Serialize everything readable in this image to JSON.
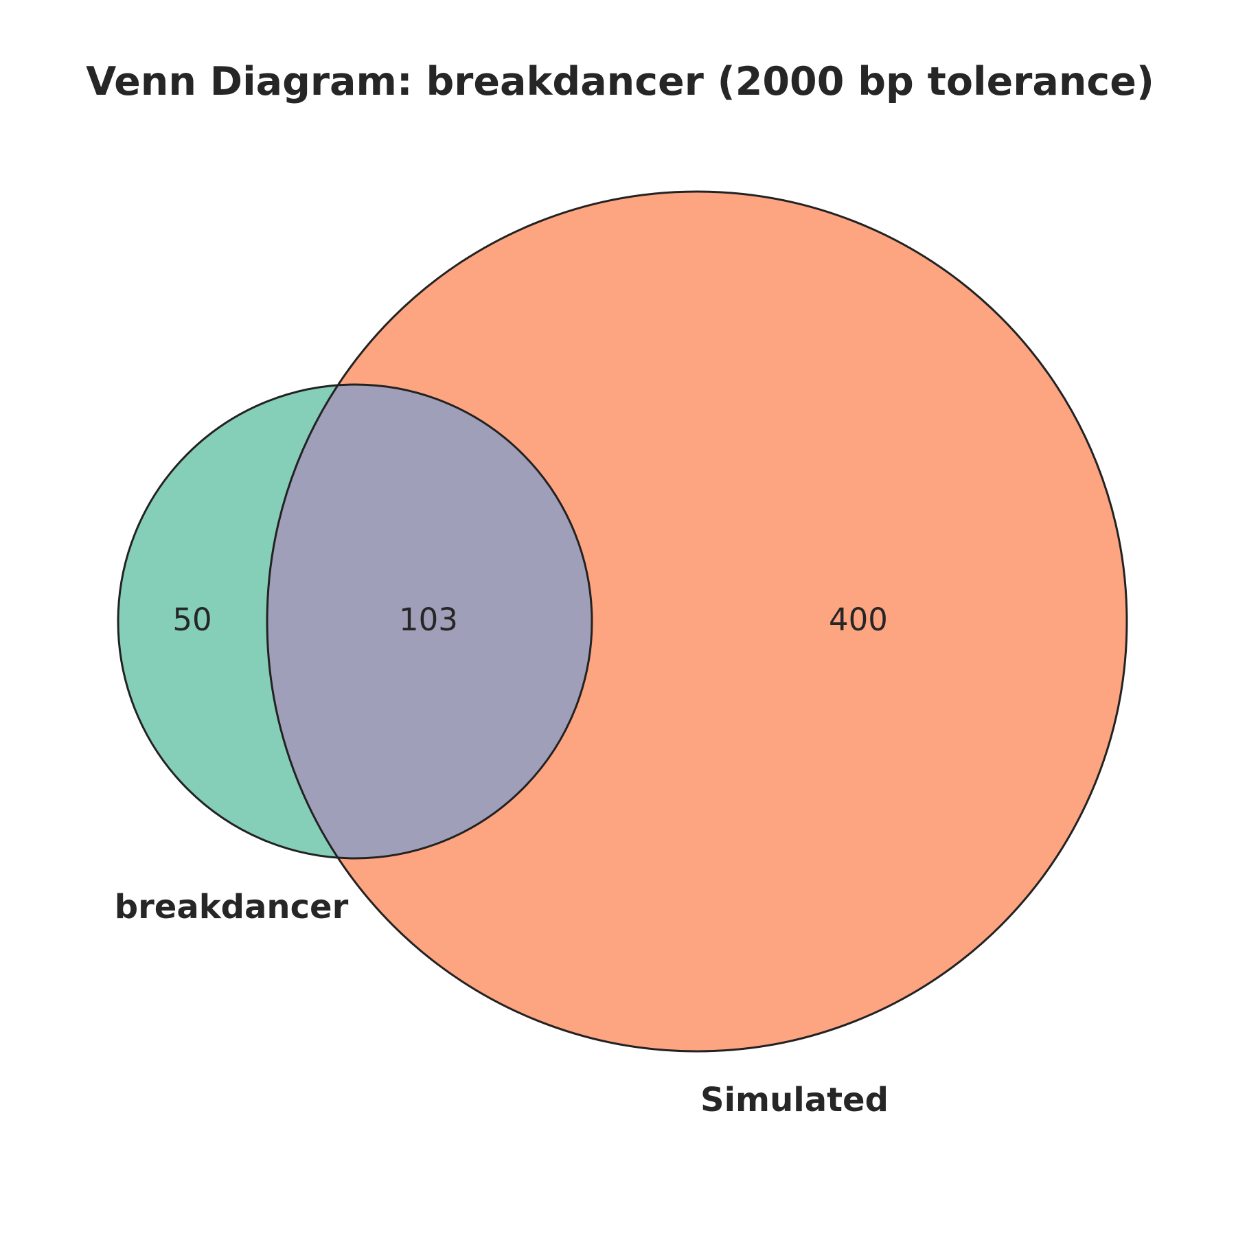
{
  "title": "Venn Diagram: breakdancer (2000 bp tolerance)",
  "sets": [
    {
      "name": "breakdancer",
      "color": "#66c2a5"
    },
    {
      "name": "Simulated",
      "color": "#fc8d62"
    }
  ],
  "intersection_color": "#8da0cb",
  "regions": {
    "only_left": "50",
    "both": "103",
    "only_right": "400"
  }
}
